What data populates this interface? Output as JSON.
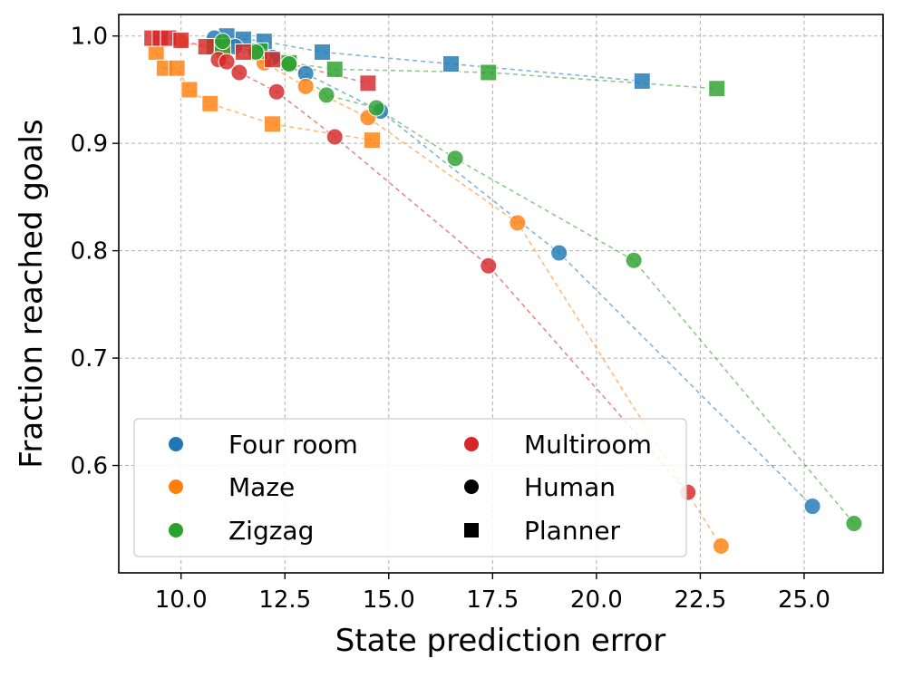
{
  "chart_data": {
    "type": "scatter",
    "title": "",
    "xlabel": "State prediction error",
    "ylabel": "Fraction reached goals",
    "xlim": [
      8.5,
      26.9
    ],
    "ylim": [
      0.5,
      1.02
    ],
    "xticks": [
      10.0,
      12.5,
      15.0,
      17.5,
      20.0,
      22.5,
      25.0
    ],
    "xtick_labels": [
      "10.0",
      "12.5",
      "15.0",
      "17.5",
      "20.0",
      "22.5",
      "25.0"
    ],
    "yticks": [
      0.6,
      0.7,
      0.8,
      0.9,
      1.0
    ],
    "ytick_labels": [
      "0.6",
      "0.7",
      "0.8",
      "0.9",
      "1.0"
    ],
    "grid": true,
    "legend_position": "lower-left",
    "legend": [
      {
        "label": "Four room",
        "marker": "circle",
        "color": "#1f77b4"
      },
      {
        "label": "Maze",
        "marker": "circle",
        "color": "#ff7f0e"
      },
      {
        "label": "Zigzag",
        "marker": "circle",
        "color": "#2ca02c"
      },
      {
        "label": "Multiroom",
        "marker": "circle",
        "color": "#d62728"
      },
      {
        "label": "Human",
        "marker": "circle",
        "color": "#000000"
      },
      {
        "label": "Planner",
        "marker": "square",
        "color": "#000000"
      }
    ],
    "series": [
      {
        "name": "Four room",
        "source": "Planner",
        "marker": "square",
        "color": "#1f77b4",
        "x": [
          11.1,
          11.5,
          12.0,
          13.4,
          16.5,
          21.1
        ],
        "y": [
          1.0,
          0.997,
          0.995,
          0.985,
          0.974,
          0.958
        ]
      },
      {
        "name": "Four room",
        "source": "Human",
        "marker": "circle",
        "color": "#1f77b4",
        "x": [
          10.8,
          11.3,
          12.2,
          13.0,
          14.8,
          19.1,
          25.2
        ],
        "y": [
          0.998,
          0.99,
          0.98,
          0.965,
          0.93,
          0.798,
          0.562
        ]
      },
      {
        "name": "Maze",
        "source": "Planner",
        "marker": "square",
        "color": "#ff7f0e",
        "x": [
          9.4,
          9.6,
          9.9,
          10.2,
          10.7,
          12.2,
          14.6
        ],
        "y": [
          0.985,
          0.97,
          0.97,
          0.95,
          0.937,
          0.918,
          0.903
        ]
      },
      {
        "name": "Maze",
        "source": "Human",
        "marker": "circle",
        "color": "#ff7f0e",
        "x": [
          10.0,
          11.0,
          12.0,
          13.0,
          14.5,
          18.1,
          23.0
        ],
        "y": [
          0.995,
          0.985,
          0.975,
          0.953,
          0.924,
          0.826,
          0.525
        ]
      },
      {
        "name": "Zigzag",
        "source": "Planner",
        "marker": "square",
        "color": "#2ca02c",
        "x": [
          10.8,
          11.0,
          11.9,
          12.6,
          13.7,
          17.4,
          22.9
        ],
        "y": [
          0.99,
          0.99,
          0.986,
          0.975,
          0.969,
          0.966,
          0.951
        ]
      },
      {
        "name": "Zigzag",
        "source": "Human",
        "marker": "circle",
        "color": "#2ca02c",
        "x": [
          11.0,
          11.8,
          12.6,
          13.5,
          14.7,
          16.6,
          20.9,
          26.2
        ],
        "y": [
          0.995,
          0.985,
          0.974,
          0.945,
          0.933,
          0.886,
          0.791,
          0.546
        ]
      },
      {
        "name": "Multiroom",
        "source": "Planner",
        "marker": "square",
        "color": "#d62728",
        "x": [
          9.3,
          9.5,
          9.7,
          10.0,
          10.6,
          11.5,
          12.2,
          14.5
        ],
        "y": [
          0.998,
          0.998,
          0.998,
          0.996,
          0.99,
          0.985,
          0.978,
          0.956
        ]
      },
      {
        "name": "Multiroom",
        "source": "Human",
        "marker": "circle",
        "color": "#d62728",
        "x": [
          10.9,
          11.1,
          11.4,
          12.3,
          13.7,
          17.4,
          22.2
        ],
        "y": [
          0.978,
          0.976,
          0.966,
          0.948,
          0.906,
          0.786,
          0.575
        ]
      }
    ]
  }
}
